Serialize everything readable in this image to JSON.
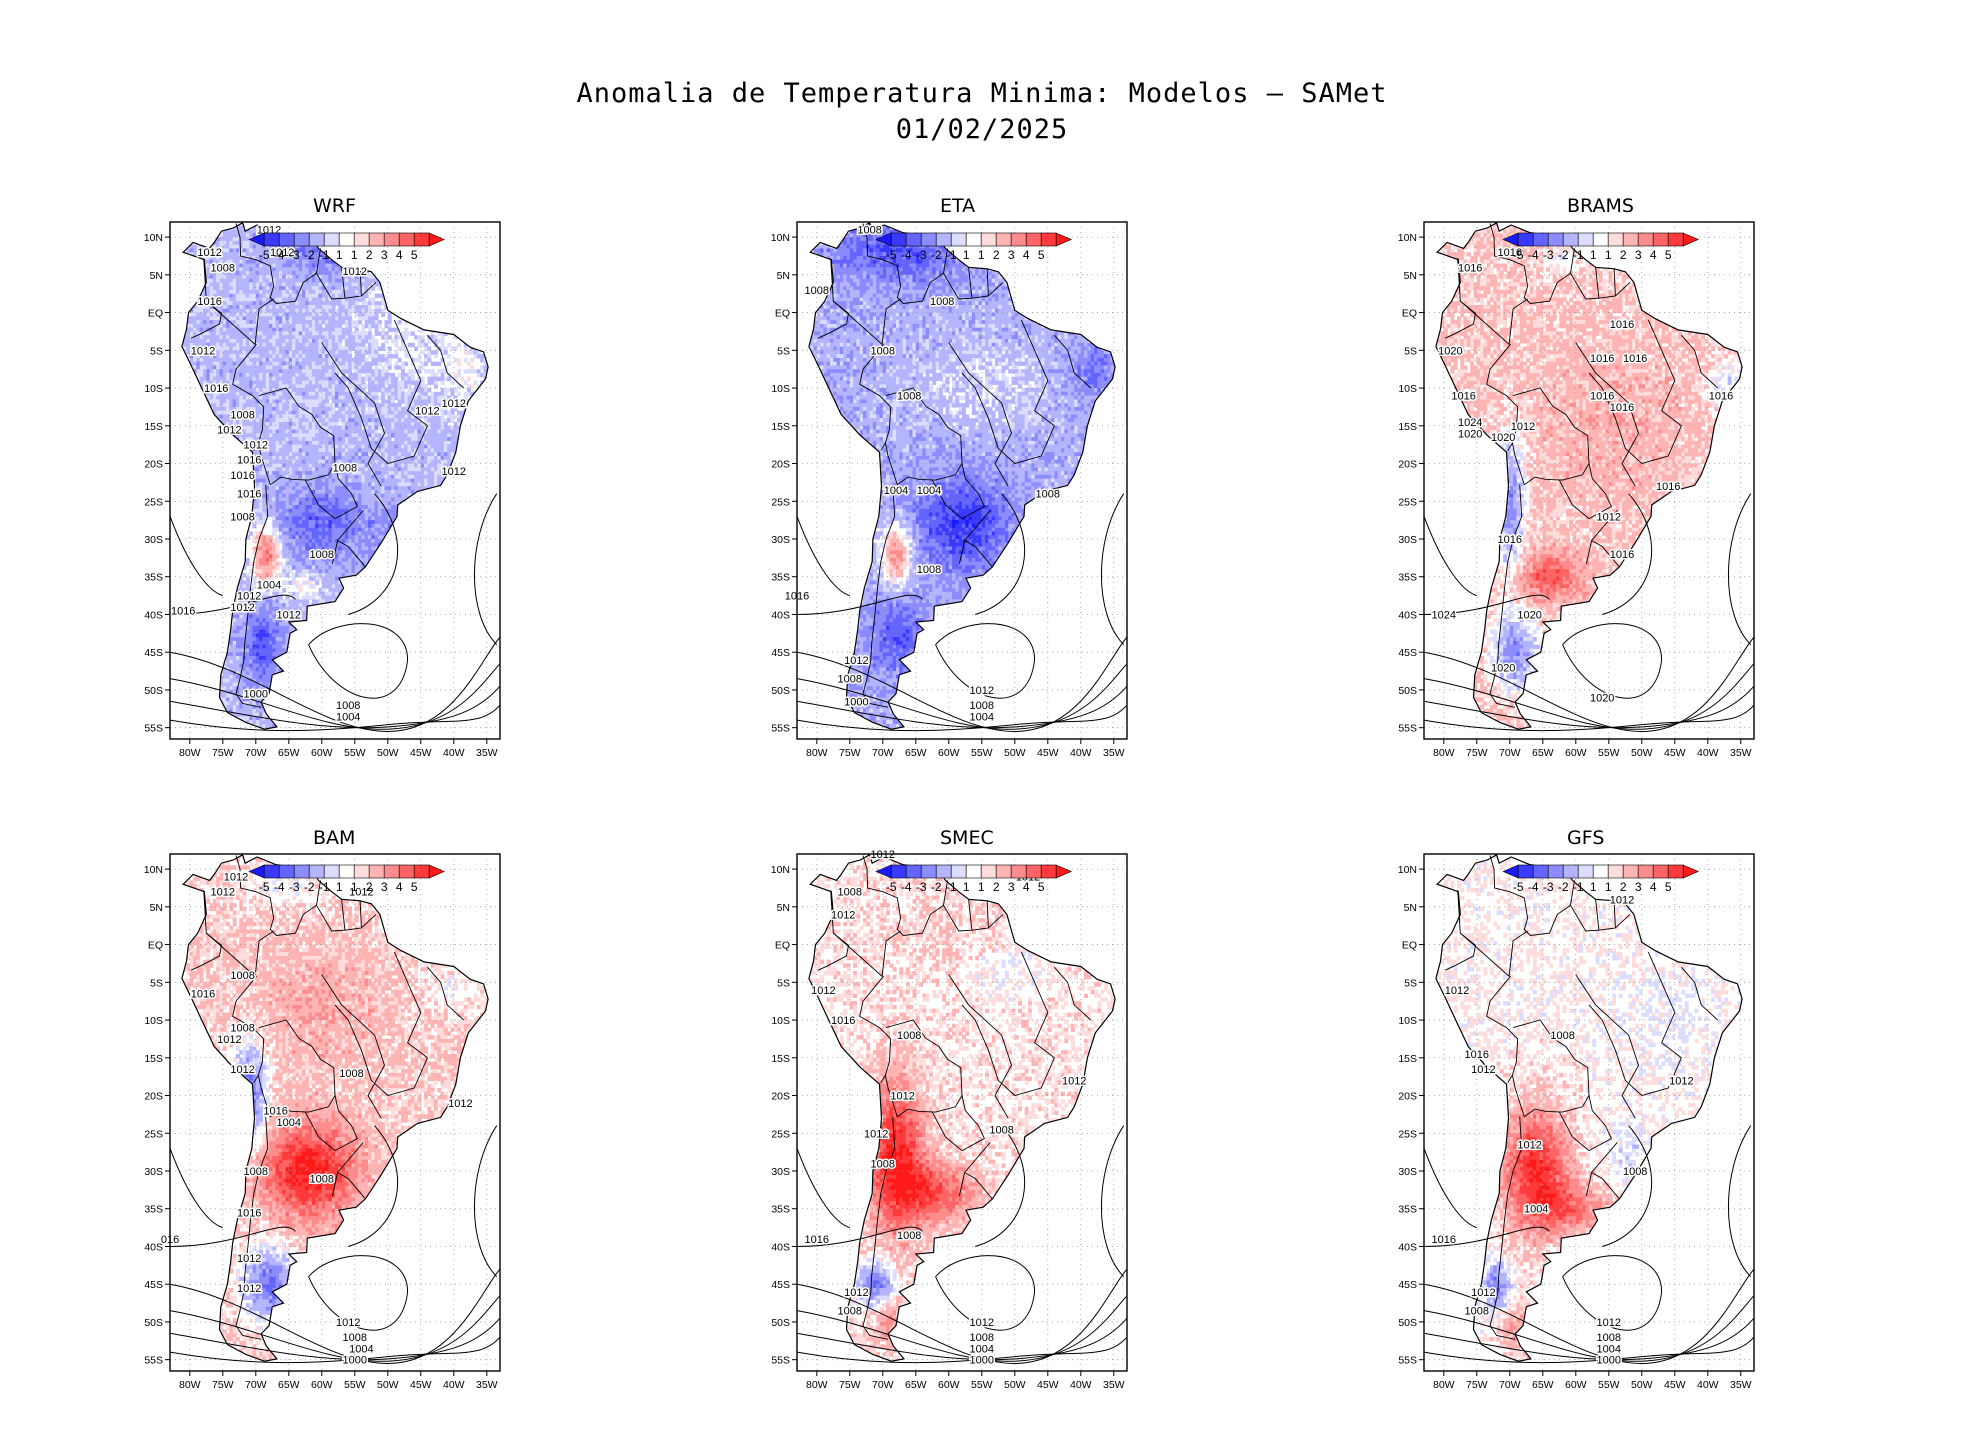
{
  "figure": {
    "title_line1": "Anomalia de Temperatura Minima: Modelos — SAMet",
    "title_line2": "01/02/2025"
  },
  "colorbar": {
    "labels": [
      "-5",
      "-4",
      "-3",
      "-2",
      "-1",
      "1",
      "1",
      "2",
      "3",
      "4",
      "5"
    ],
    "colors": [
      "#1a1aff",
      "#3a3aff",
      "#6464ff",
      "#8c8cff",
      "#b4b4ff",
      "#dcdcff",
      "#ffffff",
      "#ffdcdc",
      "#ffb4b4",
      "#ff8c8c",
      "#ff6464",
      "#ff3a3a",
      "#ff1a1a"
    ]
  },
  "axes": {
    "x_ticks": [
      "80W",
      "75W",
      "70W",
      "65W",
      "60W",
      "55W",
      "50W",
      "45W",
      "40W",
      "35W"
    ],
    "y_ticks": [
      "10N",
      "5N",
      "EQ",
      "5S",
      "10S",
      "15S",
      "20S",
      "25S",
      "30S",
      "35S",
      "40S",
      "45S",
      "50S",
      "55S"
    ]
  },
  "panels": [
    {
      "title": "WRF",
      "pattern": "wrf",
      "isobars": [
        {
          "text": "1012",
          "lat": 11,
          "lon": -68
        },
        {
          "text": "1012",
          "lat": 8,
          "lon": -77
        },
        {
          "text": "1012",
          "lat": 8,
          "lon": -66
        },
        {
          "text": "1008",
          "lat": 6,
          "lon": -75
        },
        {
          "text": "1016",
          "lat": 1.5,
          "lon": -77
        },
        {
          "text": "1012",
          "lat": -5,
          "lon": -78
        },
        {
          "text": "1016",
          "lat": -10,
          "lon": -76
        },
        {
          "text": "1008",
          "lat": -13.5,
          "lon": -72
        },
        {
          "text": "1012",
          "lat": -15.5,
          "lon": -74
        },
        {
          "text": "1012",
          "lat": -17.5,
          "lon": -70
        },
        {
          "text": "1016",
          "lat": -19.5,
          "lon": -71
        },
        {
          "text": "1016",
          "lat": -21.5,
          "lon": -72
        },
        {
          "text": "1016",
          "lat": -24,
          "lon": -71
        },
        {
          "text": "1008",
          "lat": -27,
          "lon": -72
        },
        {
          "text": "1008",
          "lat": -32,
          "lon": -60
        },
        {
          "text": "1004",
          "lat": -36,
          "lon": -68
        },
        {
          "text": "1012",
          "lat": -37.5,
          "lon": -71
        },
        {
          "text": "1012",
          "lat": -39,
          "lon": -72
        },
        {
          "text": "1012",
          "lat": -40,
          "lon": -65
        },
        {
          "text": "1016",
          "lat": -39.5,
          "lon": -81
        },
        {
          "text": "1008",
          "lat": -20.5,
          "lon": -56.5
        },
        {
          "text": "1012",
          "lat": -21,
          "lon": -40
        },
        {
          "text": "1012",
          "lat": -12,
          "lon": -40
        },
        {
          "text": "1012",
          "lat": -13,
          "lon": -44
        },
        {
          "text": "1012",
          "lat": 5.5,
          "lon": -55
        },
        {
          "text": "1000",
          "lat": -50.5,
          "lon": -70
        },
        {
          "text": "1008",
          "lat": -52,
          "lon": -56
        },
        {
          "text": "1004",
          "lat": -53.5,
          "lon": -56
        }
      ]
    },
    {
      "title": "ETA",
      "pattern": "eta",
      "isobars": [
        {
          "text": "1008",
          "lat": 11,
          "lon": -72
        },
        {
          "text": "1008",
          "lat": 3,
          "lon": -80
        },
        {
          "text": "1008",
          "lat": 1.5,
          "lon": -61
        },
        {
          "text": "1008",
          "lat": -5,
          "lon": -70
        },
        {
          "text": "1008",
          "lat": -11,
          "lon": -66
        },
        {
          "text": "1004",
          "lat": -23.5,
          "lon": -68
        },
        {
          "text": "1004",
          "lat": -23.5,
          "lon": -63
        },
        {
          "text": "1008",
          "lat": -24,
          "lon": -45
        },
        {
          "text": "1008",
          "lat": -34,
          "lon": -63
        },
        {
          "text": "1016",
          "lat": -37.5,
          "lon": -83
        },
        {
          "text": "1012",
          "lat": -46,
          "lon": -74
        },
        {
          "text": "1008",
          "lat": -48.5,
          "lon": -75
        },
        {
          "text": "1000",
          "lat": -51.5,
          "lon": -74
        },
        {
          "text": "1012",
          "lat": -50,
          "lon": -55
        },
        {
          "text": "1008",
          "lat": -52,
          "lon": -55
        },
        {
          "text": "1004",
          "lat": -53.5,
          "lon": -55
        }
      ]
    },
    {
      "title": "BRAMS",
      "pattern": "brams",
      "isobars": [
        {
          "text": "1016",
          "lat": 8,
          "lon": -70
        },
        {
          "text": "1016",
          "lat": 6,
          "lon": -76
        },
        {
          "text": "1016",
          "lat": -1.5,
          "lon": -53
        },
        {
          "text": "1020",
          "lat": -5,
          "lon": -79
        },
        {
          "text": "1016",
          "lat": -6,
          "lon": -56
        },
        {
          "text": "1016",
          "lat": -6,
          "lon": -51
        },
        {
          "text": "1016",
          "lat": -11,
          "lon": -56
        },
        {
          "text": "1016",
          "lat": -12.5,
          "lon": -53
        },
        {
          "text": "1016",
          "lat": -11,
          "lon": -38
        },
        {
          "text": "1016",
          "lat": -11,
          "lon": -77
        },
        {
          "text": "1024",
          "lat": -14.5,
          "lon": -76
        },
        {
          "text": "1020",
          "lat": -16,
          "lon": -76
        },
        {
          "text": "1012",
          "lat": -15,
          "lon": -68
        },
        {
          "text": "1020",
          "lat": -16.5,
          "lon": -71
        },
        {
          "text": "1016",
          "lat": -23,
          "lon": -46
        },
        {
          "text": "1012",
          "lat": -27,
          "lon": -55
        },
        {
          "text": "1016",
          "lat": -30,
          "lon": -70
        },
        {
          "text": "1016",
          "lat": -32,
          "lon": -53
        },
        {
          "text": "1024",
          "lat": -40,
          "lon": -80
        },
        {
          "text": "1020",
          "lat": -40,
          "lon": -67
        },
        {
          "text": "1020",
          "lat": -47,
          "lon": -71
        },
        {
          "text": "1020",
          "lat": -51,
          "lon": -56
        }
      ]
    },
    {
      "title": "BAM",
      "pattern": "bam",
      "isobars": [
        {
          "text": "1012",
          "lat": 9,
          "lon": -73
        },
        {
          "text": "1012",
          "lat": 7,
          "lon": -75
        },
        {
          "text": "1012",
          "lat": 7,
          "lon": -54
        },
        {
          "text": "1008",
          "lat": -4,
          "lon": -72
        },
        {
          "text": "1016",
          "lat": -6.5,
          "lon": -78
        },
        {
          "text": "1008",
          "lat": -11,
          "lon": -72
        },
        {
          "text": "1012",
          "lat": -12.5,
          "lon": -74
        },
        {
          "text": "1012",
          "lat": -16.5,
          "lon": -72
        },
        {
          "text": "1008",
          "lat": -17,
          "lon": -55.5
        },
        {
          "text": "1012",
          "lat": -21,
          "lon": -39
        },
        {
          "text": "1016",
          "lat": -22,
          "lon": -67
        },
        {
          "text": "1004",
          "lat": -23.5,
          "lon": -65
        },
        {
          "text": "1008",
          "lat": -30,
          "lon": -70
        },
        {
          "text": "1008",
          "lat": -31,
          "lon": -60
        },
        {
          "text": "1016",
          "lat": -35.5,
          "lon": -71
        },
        {
          "text": "016",
          "lat": -39,
          "lon": -83
        },
        {
          "text": "1012",
          "lat": -41.5,
          "lon": -71
        },
        {
          "text": "1012",
          "lat": -45.5,
          "lon": -71
        },
        {
          "text": "1012",
          "lat": -50,
          "lon": -56
        },
        {
          "text": "1008",
          "lat": -52,
          "lon": -55
        },
        {
          "text": "1004",
          "lat": -53.5,
          "lon": -54
        },
        {
          "text": "1000",
          "lat": -55,
          "lon": -55
        }
      ]
    },
    {
      "title": "SMEC",
      "pattern": "smec",
      "isobars": [
        {
          "text": "1012",
          "lat": 12,
          "lon": -70
        },
        {
          "text": "1012",
          "lat": 9,
          "lon": -48
        },
        {
          "text": "1008",
          "lat": 7,
          "lon": -75
        },
        {
          "text": "1012",
          "lat": 4,
          "lon": -76
        },
        {
          "text": "1012",
          "lat": -6,
          "lon": -79
        },
        {
          "text": "1016",
          "lat": -10,
          "lon": -76
        },
        {
          "text": "1008",
          "lat": -12,
          "lon": -66
        },
        {
          "text": "1012",
          "lat": -18,
          "lon": -41
        },
        {
          "text": "1012",
          "lat": -20,
          "lon": -67
        },
        {
          "text": "1012",
          "lat": -25,
          "lon": -71
        },
        {
          "text": "1008",
          "lat": -24.5,
          "lon": -52
        },
        {
          "text": "1008",
          "lat": -29,
          "lon": -70
        },
        {
          "text": "1008",
          "lat": -38.5,
          "lon": -66
        },
        {
          "text": "1016",
          "lat": -39,
          "lon": -80
        },
        {
          "text": "1012",
          "lat": -46,
          "lon": -74
        },
        {
          "text": "1008",
          "lat": -48.5,
          "lon": -75
        },
        {
          "text": "1012",
          "lat": -50,
          "lon": -55
        },
        {
          "text": "1008",
          "lat": -52,
          "lon": -55
        },
        {
          "text": "1004",
          "lat": -53.5,
          "lon": -55
        },
        {
          "text": "1000",
          "lat": -55,
          "lon": -55
        }
      ]
    },
    {
      "title": "GFS",
      "pattern": "gfs",
      "isobars": [
        {
          "text": "1012",
          "lat": 6,
          "lon": -53
        },
        {
          "text": "1012",
          "lat": -6,
          "lon": -78
        },
        {
          "text": "1008",
          "lat": -12,
          "lon": -62
        },
        {
          "text": "1016",
          "lat": -14.5,
          "lon": -75
        },
        {
          "text": "1012",
          "lat": -16.5,
          "lon": -74
        },
        {
          "text": "1012",
          "lat": -18,
          "lon": -44
        },
        {
          "text": "1012",
          "lat": -26.5,
          "lon": -67
        },
        {
          "text": "1008",
          "lat": -30,
          "lon": -51
        },
        {
          "text": "1004",
          "lat": -35,
          "lon": -66
        },
        {
          "text": "1016",
          "lat": -39,
          "lon": -80
        },
        {
          "text": "1012",
          "lat": -46,
          "lon": -74
        },
        {
          "text": "1008",
          "lat": -48.5,
          "lon": -75
        },
        {
          "text": "1012",
          "lat": -50,
          "lon": -55
        },
        {
          "text": "1008",
          "lat": -52,
          "lon": -55
        },
        {
          "text": "1004",
          "lat": -53.5,
          "lon": -55
        },
        {
          "text": "1000",
          "lat": -55,
          "lon": -55
        }
      ]
    }
  ]
}
